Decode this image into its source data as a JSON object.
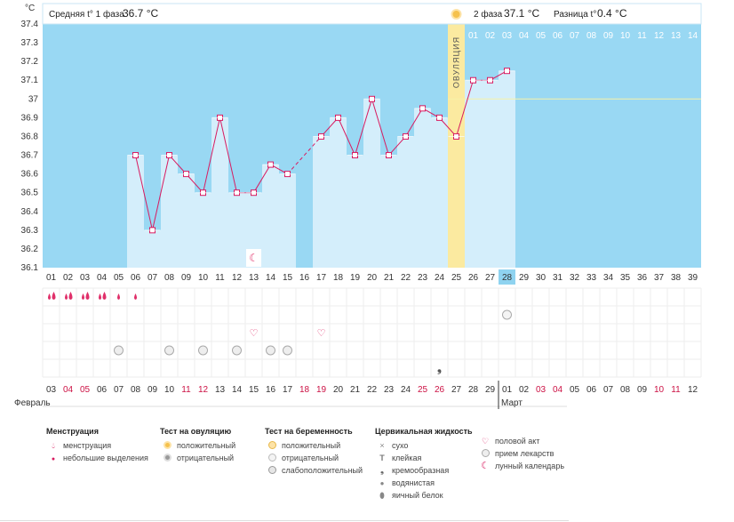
{
  "header": {
    "phase1_label": "Средняя t° 1 фаза",
    "phase1_value": "36.7 °C",
    "phase2_label": "2 фаза",
    "phase2_value": "37.1 °C",
    "diff_label": "Разница t°",
    "diff_value": "0.4 °C"
  },
  "unit_label": "°C",
  "ovulation_label": "ОВУЛЯЦИЯ",
  "months": {
    "feb": "Февраль",
    "mar": "Март"
  },
  "colors": {
    "sky": "#99d8f3",
    "bar": "#d4eefb",
    "line": "#d81b60",
    "ovulation": "#fbeaa0",
    "marker_red": "#e0306a"
  },
  "chart_data": {
    "type": "line",
    "ylim": [
      36.1,
      37.4
    ],
    "yticks": [
      "37.4",
      "37.3",
      "37.2",
      "37.1",
      "37",
      "36.9",
      "36.8",
      "36.7",
      "36.6",
      "36.5",
      "36.4",
      "36.3",
      "36.2",
      "36.1"
    ],
    "coverline": 37.0,
    "cycle_days": [
      "01",
      "02",
      "03",
      "04",
      "05",
      "06",
      "07",
      "08",
      "09",
      "10",
      "11",
      "12",
      "13",
      "14",
      "15",
      "16",
      "17",
      "18",
      "19",
      "20",
      "21",
      "22",
      "23",
      "24",
      "25",
      "26",
      "27",
      "28",
      "29",
      "30",
      "31",
      "32",
      "33",
      "34",
      "35",
      "36",
      "37",
      "38",
      "39"
    ],
    "dates": [
      "03",
      "04",
      "05",
      "06",
      "07",
      "08",
      "09",
      "10",
      "11",
      "12",
      "13",
      "14",
      "15",
      "16",
      "17",
      "18",
      "19",
      "20",
      "21",
      "22",
      "23",
      "24",
      "25",
      "26",
      "27",
      "28",
      "29",
      "01",
      "02",
      "03",
      "04",
      "05",
      "06",
      "07",
      "08",
      "09",
      "10",
      "11",
      "12"
    ],
    "weekend_dates_idx": [
      1,
      2,
      8,
      9,
      15,
      16,
      22,
      23,
      29,
      30,
      36,
      37
    ],
    "phase2_days": [
      "01",
      "02",
      "03",
      "04",
      "05",
      "06",
      "07",
      "08",
      "09",
      "10",
      "11",
      "12",
      "13",
      "14"
    ],
    "temps": [
      null,
      null,
      null,
      null,
      null,
      36.7,
      36.3,
      36.7,
      36.6,
      36.5,
      36.9,
      36.5,
      36.5,
      36.65,
      36.6,
      null,
      36.8,
      36.9,
      36.7,
      37.0,
      36.7,
      36.8,
      36.95,
      36.9,
      36.8,
      37.1,
      37.1,
      37.15,
      null,
      null,
      null,
      null,
      null,
      null,
      null,
      null,
      null,
      null,
      null
    ],
    "ovulation_day_index": 24,
    "current_day_index": 27,
    "period_heavy_idx": [
      0,
      1,
      2,
      3
    ],
    "period_light_idx": [
      4,
      5
    ],
    "sex_idx": [
      12,
      16
    ],
    "medication_idx": [
      4,
      7,
      9,
      11,
      13,
      14
    ],
    "preg_test_negative_idx": [
      27
    ],
    "cervical_creamy_idx": [
      23
    ],
    "moon_idx": [
      12
    ]
  },
  "legend": {
    "menstruation": {
      "title": "Менструация",
      "items": [
        "менструация",
        "небольшие выделения"
      ]
    },
    "ovulation_test": {
      "title": "Тест на овуляцию",
      "items": [
        "положительный",
        "отрицательный"
      ]
    },
    "pregnancy_test": {
      "title": "Тест на беременность",
      "items": [
        "положительный",
        "отрицательный",
        "слабоположительный"
      ]
    },
    "cervical": {
      "title": "Цервикальная жидкость",
      "items": [
        "сухо",
        "клейкая",
        "кремообразная",
        "водянистая",
        "яичный белок"
      ]
    },
    "other": {
      "items": [
        "половой акт",
        "прием лекарств",
        "лунный календарь"
      ]
    }
  }
}
